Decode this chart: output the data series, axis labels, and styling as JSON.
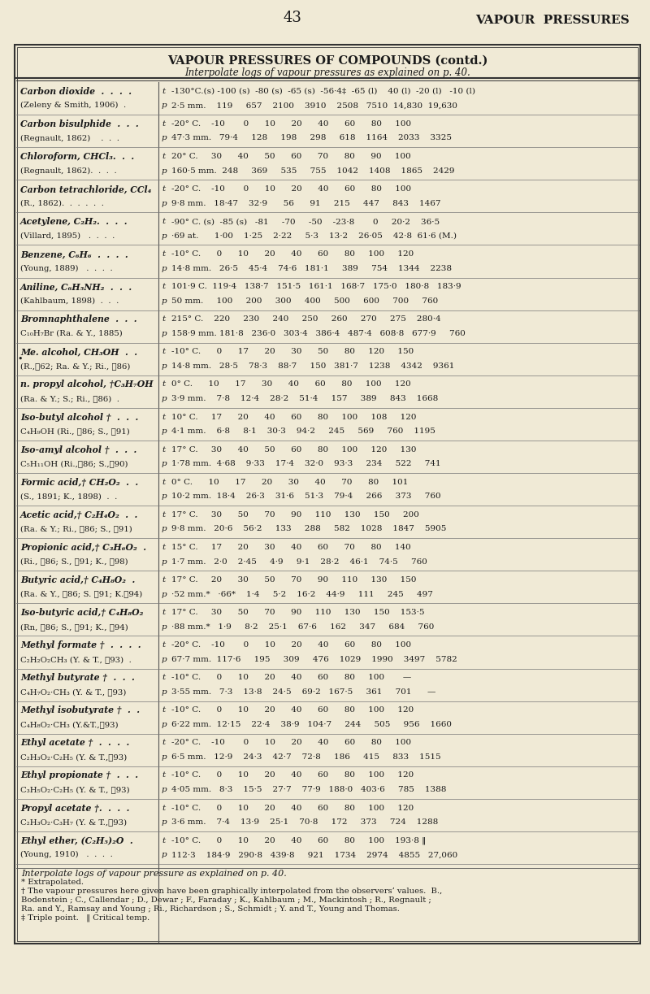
{
  "page_number": "43",
  "header_right": "VAPOUR  PRESSURES",
  "table_title": "VAPOUR PRESSURES OF COMPOUNDS (contd.)",
  "table_subtitle": "Interpolate logs of vapour pressures as explained on p. 40.",
  "bg_color": "#f0ead6",
  "text_color": "#1a1a1a",
  "rows": [
    {
      "compound": "Carbon dioxide  .  .  .  .",
      "ref": "(Zeleny & Smith, 1906)  .",
      "t_label": "t",
      "p_label": "p",
      "t_vals": "-130°C.(s) -100 (s)  -80 (s)  -65 (s)  -56·4‡  -65 (l)    40 (l)  -20 (l)   -10 (l)",
      "p_vals": "2·5 mm.    119     657    2100    3910    2508   7510  14,830  19,630"
    },
    {
      "compound": "Carbon bisulphide  .  .  .",
      "ref": "(Regnault, 1862)    .  .  .",
      "t_label": "t",
      "p_label": "p",
      "t_vals": "-20° C.    -10       0      10      20      40      60      80     100",
      "p_vals": "47·3 mm.   79·4     128     198     298     618    1164    2033    3325"
    },
    {
      "compound": "Chloroform, CHCl₃.  .  .",
      "ref": "(Regnault, 1862).  .  .  .",
      "t_label": "t",
      "p_label": "p",
      "t_vals": "20° C.     30      40      50      60      70      80      90     100",
      "p_vals": "160·5 mm.  248     369     535     755    1042    1408    1865    2429"
    },
    {
      "compound": "Carbon tetrachloride, CCl₄",
      "ref": "(R., 1862).  .  .  .  .  .",
      "t_label": "t",
      "p_label": "p",
      "t_vals": "-20° C.    -10       0      10      20      40      60      80     100",
      "p_vals": "9·8 mm.   18·47    32·9      56      91     215     447     843    1467"
    },
    {
      "compound": "Acetylene, C₂H₂.  .  .  .",
      "ref": "(Villard, 1895)   .  .  .  .",
      "t_label": "t",
      "p_label": "p",
      "t_vals": "-90° C. (s)  -85 (s)   -81     -70     -50    -23·8       0     20·2    36·5",
      "p_vals": "·69 at.      1·00    1·25    2·22     5·3    13·2    26·05    42·8  61·6 (M.)"
    },
    {
      "compound": "Benzene, C₆H₆  .  .  .  .",
      "ref": "(Young, 1889)   .  .  .  .",
      "t_label": "t",
      "p_label": "p",
      "t_vals": "-10° C.      0      10      20      40      60      80     100     120",
      "p_vals": "14·8 mm.   26·5    45·4    74·6   181·1     389     754    1344    2238"
    },
    {
      "compound": "Aniline, C₆H₅NH₂  .  .  .",
      "ref": "(Kahlbaum, 1898)  .  .  .",
      "t_label": "t",
      "p_label": "p",
      "t_vals": "101·9 C.  119·4   138·7   151·5   161·1   168·7   175·0   180·8   183·9",
      "p_vals": "50 mm.     100     200     300     400     500     600     700     760"
    },
    {
      "compound": "Bromnaphthalene  .  .  .",
      "ref": "C₁₀H₇Br (Ra. & Y., 1885)",
      "t_label": "t",
      "p_label": "p",
      "t_vals": "215° C.    220     230     240     250     260     270     275    280·4",
      "p_vals": "158·9 mm. 181·8   236·0   303·4   386·4   487·4   608·8   677·9     760"
    },
    {
      "compound": "Me. alcohol, CH₃OH  .  .",
      "ref": "(R.,‧62; Ra. & Y.; Ri., ‧86)",
      "t_label": "t",
      "p_label": "p",
      "t_vals": "-10° C.      0      17      20      30      50      80     120     150",
      "p_vals": "14·8 mm.   28·5    78·3    88·7     150   381·7    1238    4342    9361",
      "bullet": true
    },
    {
      "compound": "n. propyl alcohol, †C₃H₇OH",
      "ref": "(Ra. & Y.; S.; Ri., ‧86)  .",
      "t_label": "t",
      "p_label": "p",
      "t_vals": "0° C.      10      17      30      40      60      80     100     120",
      "p_vals": "3·9 mm.    7·8    12·4    28·2    51·4     157     389     843    1668"
    },
    {
      "compound": "Iso-butyl alcohol †  .  .  .",
      "ref": "C₄H₉OH (Ri., ‧86; S., ‧91)",
      "t_label": "t",
      "p_label": "p",
      "t_vals": "10° C.     17      20      40      60      80     100     108     120",
      "p_vals": "4·1 mm.    6·8     8·1    30·3    94·2     245     569     760    1195"
    },
    {
      "compound": "Iso-amyl alcohol †  .  .  .",
      "ref": "C₅H₁₁OH (Ri.,‧86; S.,‧90)",
      "t_label": "t",
      "p_label": "p",
      "t_vals": "17° C.     30      40      50      60      80     100     120     130",
      "p_vals": "1·78 mm.  4·68    9·33    17·4    32·0    93·3     234     522     741"
    },
    {
      "compound": "Formic acid,† CH₂O₂  .  .",
      "ref": "(S., 1891; K., 1898)  .  .",
      "t_label": "t",
      "p_label": "p",
      "t_vals": "0° C.      10      17      20      30      40      70      80     101",
      "p_vals": "10·2 mm.  18·4    26·3    31·6    51·3    79·4     266     373     760"
    },
    {
      "compound": "Acetic acid,† C₂H₄O₂  .  .",
      "ref": "(Ra. & Y.; Ri., ‧86; S., ‧91)",
      "t_label": "t",
      "p_label": "p",
      "t_vals": "17° C.     30      50      70      90     110     130     150     200",
      "p_vals": "9·8 mm.   20·6    56·2     133     288     582    1028    1847    5905"
    },
    {
      "compound": "Propionic acid,† C₃H₆O₂  .",
      "ref": "(Ri., ‧86; S., ‧91; K., ‧98)",
      "t_label": "t",
      "p_label": "p",
      "t_vals": "15° C.     17      20      30      40      60      70      80     140",
      "p_vals": "1·7 mm.   2·0    2·45     4·9     9·1    28·2    46·1    74·5     760"
    },
    {
      "compound": "Butyric acid,† C₄H₈O₂  .",
      "ref": "(Ra. & Y., ‧86; S. ‧91; K.‧94)",
      "t_label": "t",
      "p_label": "p",
      "t_vals": "17° C.     20      30      50      70      90     110     130     150",
      "p_vals": "·52 mm.*   ·66*    1·4     5·2    16·2    44·9     111     245     497"
    },
    {
      "compound": "Iso-butyric acid,† C₄H₈O₂",
      "ref": "(Rn, ‧86; S., ‧91; K., ‧94)",
      "t_label": "t",
      "p_label": "p",
      "t_vals": "17° C.     30      50      70      90     110     130     150    153·5",
      "p_vals": "·88 mm.*   1·9     8·2    25·1    67·6     162     347     684     760"
    },
    {
      "compound": "Methyl formate †  .  .  .  .",
      "ref": "C₂H₂O₂CH₃ (Y. & T., ‧93)  .",
      "t_label": "t",
      "p_label": "p",
      "t_vals": "-20° C.    -10       0      10      20      40      60      80     100",
      "p_vals": "67·7 mm.  117·6     195     309     476    1029    1990    3497    5782"
    },
    {
      "compound": "Methyl butyrate †  .  .  .",
      "ref": "C₄H₇O₂·CH₃ (Y. & T., ‧93)",
      "t_label": "t",
      "p_label": "p",
      "t_vals": "-10° C.      0      10      20      40      60      80     100       —",
      "p_vals": "3·55 mm.   7·3    13·8    24·5    69·2   167·5     361     701      —"
    },
    {
      "compound": "Methyl isobutyrate †  .  .",
      "ref": "C₄H₈O₂·CH₃ (Y.&T.,‧93)",
      "t_label": "t",
      "p_label": "p",
      "t_vals": "-10° C.      0      10      20      40      60      80     100     120",
      "p_vals": "6·22 mm.  12·15    22·4    38·9   104·7     244     505     956    1660"
    },
    {
      "compound": "Ethyl acetate †  .  .  .  .",
      "ref": "C₂H₃O₂·C₂H₅ (Y. & T.,‧93)",
      "t_label": "t",
      "p_label": "p",
      "t_vals": "-20° C.    -10       0      10      20      40      60      80     100",
      "p_vals": "6·5 mm.   12·9    24·3    42·7    72·8     186     415     833    1515"
    },
    {
      "compound": "Ethyl propionate †  .  .  .",
      "ref": "C₃H₅O₂·C₂H₅ (Y. & T., ‧93)",
      "t_label": "t",
      "p_label": "p",
      "t_vals": "-10° C.      0      10      20      40      60      80     100     120",
      "p_vals": "4·05 mm.   8·3    15·5    27·7    77·9   188·0   403·6     785    1388"
    },
    {
      "compound": "Propyl acetate †.  .  .  .",
      "ref": "C₂H₃O₂·C₃H₇ (Y. & T.,‧93)",
      "t_label": "t",
      "p_label": "p",
      "t_vals": "-10° C.      0      10      20      40      60      80     100     120",
      "p_vals": "3·6 mm.    7·4    13·9    25·1    70·8     172     373     724    1288"
    },
    {
      "compound": "Ethyl ether, (C₂H₅)₂O  .",
      "ref": "(Young, 1910)   .  .  .  .",
      "t_label": "t",
      "p_label": "p",
      "t_vals": "-10° C.      0      10      20      40      60      80     100    193·8 ‖",
      "p_vals": "112·3    184·9   290·8   439·8     921    1734    2974    4855   27,060"
    }
  ],
  "footer_line1": "Interpolate logs of vapour pressure as explained on p. 40.",
  "footer_line2": "* Extrapolated.",
  "footer_line3": "† The vapour pressures here given have been graphically interpolated from the observers’ values.  B.,",
  "footer_line4": "Bodenstein ; C., Callendar ; D., Dewar ; F., Faraday ; K., Kahlbaum ; M., Mackintosh ; R., Regnault ;",
  "footer_line5": "Ra. and Y., Ramsay and Young ; Ri., Richardson ; S., Schmidt ; Y. and T., Young and Thomas.",
  "footer_line6": "‡ Triple point.   ‖ Critical temp."
}
